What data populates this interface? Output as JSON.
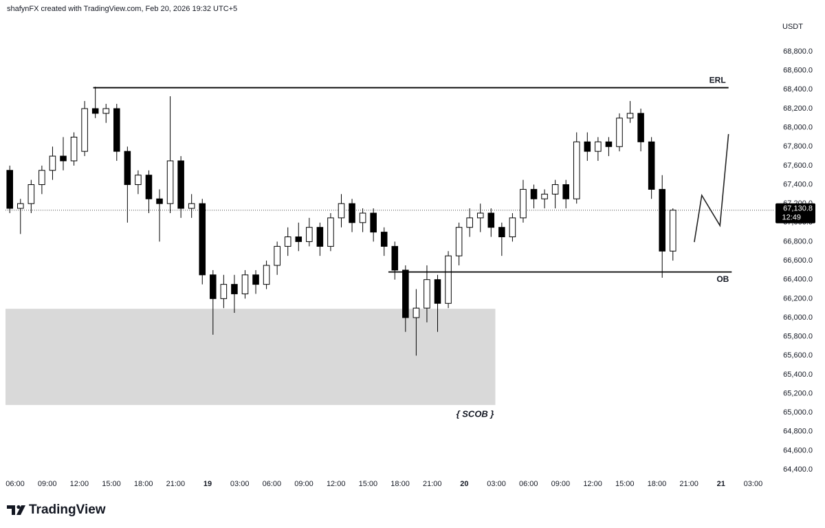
{
  "chart_data": {
    "type": "candlestick",
    "header": "shafynFX created with TradingView.com, Feb 20, 2026 19:32 UTC+5",
    "currency": "USDT",
    "brand": "TradingView",
    "up_color": "#ffffff",
    "down_color": "#000000",
    "border_color": "#000000",
    "grid": false,
    "xlim": [
      5.1,
      76.9
    ],
    "ylim": [
      64350,
      69126
    ],
    "xticks": [
      {
        "value": 6,
        "label": "06:00"
      },
      {
        "value": 9,
        "label": "09:00"
      },
      {
        "value": 12,
        "label": "12:00"
      },
      {
        "value": 15,
        "label": "15:00"
      },
      {
        "value": 18,
        "label": "18:00"
      },
      {
        "value": 21,
        "label": "21:00"
      },
      {
        "value": 24,
        "label": "19"
      },
      {
        "value": 27,
        "label": "03:00"
      },
      {
        "value": 30,
        "label": "06:00"
      },
      {
        "value": 33,
        "label": "09:00"
      },
      {
        "value": 36,
        "label": "12:00"
      },
      {
        "value": 39,
        "label": "15:00"
      },
      {
        "value": 42,
        "label": "18:00"
      },
      {
        "value": 45,
        "label": "21:00"
      },
      {
        "value": 48,
        "label": "20"
      },
      {
        "value": 51,
        "label": "03:00"
      },
      {
        "value": 54,
        "label": "06:00"
      },
      {
        "value": 57,
        "label": "09:00"
      },
      {
        "value": 60,
        "label": "12:00"
      },
      {
        "value": 63,
        "label": "15:00"
      },
      {
        "value": 66,
        "label": "18:00"
      },
      {
        "value": 69,
        "label": "21:00"
      },
      {
        "value": 72,
        "label": "21"
      },
      {
        "value": 75,
        "label": "03:00"
      }
    ],
    "yticks": [
      {
        "value": 64400,
        "label": "64,400.0"
      },
      {
        "value": 64600,
        "label": "64,600.0"
      },
      {
        "value": 64800,
        "label": "64,800.0"
      },
      {
        "value": 65000,
        "label": "65,000.0"
      },
      {
        "value": 65200,
        "label": "65,200.0"
      },
      {
        "value": 65400,
        "label": "65,400.0"
      },
      {
        "value": 65600,
        "label": "65,600.0"
      },
      {
        "value": 65800,
        "label": "65,800.0"
      },
      {
        "value": 66000,
        "label": "66,000.0"
      },
      {
        "value": 66200,
        "label": "66,200.0"
      },
      {
        "value": 66400,
        "label": "66,400.0"
      },
      {
        "value": 66600,
        "label": "66,600.0"
      },
      {
        "value": 66800,
        "label": "66,800.0"
      },
      {
        "value": 67000,
        "label": "67,000.0"
      },
      {
        "value": 67200,
        "label": "67,200.0"
      },
      {
        "value": 67400,
        "label": "67,400.0"
      },
      {
        "value": 67600,
        "label": "67,600.0"
      },
      {
        "value": 67800,
        "label": "67,800.0"
      },
      {
        "value": 68000,
        "label": "68,000.0"
      },
      {
        "value": 68200,
        "label": "68,200.0"
      },
      {
        "value": 68400,
        "label": "68,400.0"
      },
      {
        "value": 68600,
        "label": "68,600.0"
      },
      {
        "value": 68800,
        "label": "68,800.0"
      }
    ],
    "x": [
      5.5,
      6.5,
      7.5,
      8.5,
      9.5,
      10.5,
      11.5,
      12.5,
      13.5,
      14.5,
      15.5,
      16.5,
      17.5,
      18.5,
      19.5,
      20.5,
      21.5,
      22.5,
      23.5,
      24.5,
      25.5,
      26.5,
      27.5,
      28.5,
      29.5,
      30.5,
      31.5,
      32.5,
      33.5,
      34.5,
      35.5,
      36.5,
      37.5,
      38.5,
      39.5,
      40.5,
      41.5,
      42.5,
      43.5,
      44.5,
      45.5,
      46.5,
      47.5,
      48.5,
      49.5,
      50.5,
      51.5,
      52.5,
      53.5,
      54.5,
      55.5,
      56.5,
      57.5,
      58.5,
      59.5,
      60.5,
      61.5,
      62.5,
      63.5,
      64.5,
      65.5,
      66.5,
      67.5
    ],
    "open": [
      67550,
      67150,
      67200,
      67400,
      67550,
      67700,
      67650,
      67750,
      68200,
      68150,
      68200,
      67750,
      67400,
      67500,
      67250,
      67200,
      67650,
      67150,
      67200,
      66450,
      66200,
      66350,
      66250,
      66450,
      66350,
      66550,
      66750,
      66850,
      66800,
      66950,
      66750,
      67050,
      67200,
      67000,
      67100,
      66900,
      66750,
      66500,
      66000,
      66100,
      66400,
      66150,
      66650,
      66950,
      67050,
      67100,
      66950,
      66850,
      67050,
      67350,
      67250,
      67300,
      67400,
      67250,
      67850,
      67750,
      67850,
      67800,
      68100,
      68150,
      67850,
      67350,
      66700
    ],
    "high": [
      67600,
      67250,
      67450,
      67600,
      67800,
      67900,
      67950,
      68280,
      68430,
      68250,
      68250,
      67800,
      67550,
      67550,
      67350,
      68330,
      67700,
      67300,
      67250,
      66500,
      66450,
      66450,
      66500,
      66500,
      66600,
      66800,
      66950,
      67000,
      67050,
      67000,
      67100,
      67300,
      67250,
      67150,
      67150,
      66950,
      66800,
      66550,
      66300,
      66550,
      66450,
      66700,
      67000,
      67150,
      67200,
      67150,
      67000,
      67100,
      67450,
      67400,
      67350,
      67450,
      67450,
      67950,
      67950,
      67900,
      67900,
      68150,
      68280,
      68200,
      67900,
      67500,
      67150
    ],
    "low": [
      67100,
      66880,
      67100,
      67300,
      67450,
      67550,
      67600,
      67700,
      68100,
      68050,
      67650,
      67000,
      67300,
      67100,
      66800,
      67100,
      67050,
      67050,
      66350,
      65820,
      66100,
      66050,
      66200,
      66250,
      66300,
      66450,
      66650,
      66700,
      66750,
      66650,
      66700,
      66950,
      66900,
      66900,
      66800,
      66650,
      66400,
      65850,
      65600,
      65950,
      65850,
      66100,
      66550,
      66850,
      66900,
      66850,
      66650,
      66800,
      67000,
      67150,
      67150,
      67150,
      67150,
      67200,
      67650,
      67650,
      67700,
      67750,
      68050,
      67750,
      67250,
      66420,
      66600
    ],
    "close": [
      67150,
      67200,
      67400,
      67550,
      67700,
      67650,
      67900,
      68200,
      68150,
      68200,
      67750,
      67400,
      67500,
      67250,
      67200,
      67650,
      67150,
      67200,
      66450,
      66200,
      66350,
      66250,
      66450,
      66350,
      66550,
      66750,
      66850,
      66800,
      66950,
      66750,
      67050,
      67200,
      67000,
      67100,
      66900,
      66750,
      66500,
      66000,
      66100,
      66400,
      66150,
      66650,
      66950,
      67050,
      67100,
      66950,
      66850,
      67050,
      67350,
      67250,
      67300,
      67400,
      67250,
      67850,
      67750,
      67850,
      67800,
      68100,
      68150,
      67850,
      67350,
      66700,
      67130.8
    ],
    "last_price": {
      "value": 67130.8,
      "label": "67,130.8",
      "countdown": "12:49"
    },
    "levels": [
      {
        "label": "ERL",
        "value": 68420,
        "x": [
          13.3,
          72.7
        ]
      },
      {
        "label": "OB",
        "value": 66480,
        "x": [
          40.9,
          73
        ]
      }
    ],
    "box": {
      "label": "{ SCOB }",
      "top": 66093,
      "bottom": 65080,
      "x": [
        5.1,
        50.9
      ],
      "color": "#d9d9d9"
    },
    "projection": {
      "x": [
        69.5,
        70.2,
        71.9,
        72.7
      ],
      "values": [
        66795,
        67287,
        66969,
        67932
      ]
    }
  }
}
